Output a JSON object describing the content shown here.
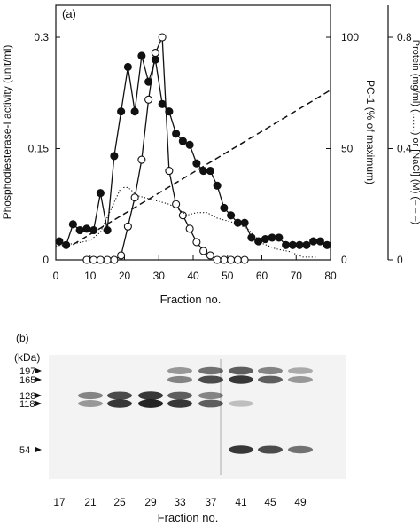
{
  "panel_a": {
    "label": "(a)",
    "xlabel": "Fraction no.",
    "y1label": "Phosphodiesterase-I activity (unit/ml)",
    "y2label": "PC-1 (% of maximum)",
    "y3label": "Protein (mg/ml) (……) or [NaCl] (M) (– – –)"
  },
  "panel_b": {
    "label": "(b)",
    "kda_label": "(kDa)",
    "xlabel": "Fraction no."
  },
  "chart_data": [
    {
      "type": "line",
      "title": "",
      "xlabel": "Fraction no.",
      "ylabel": "Phosphodiesterase-I activity (unit/ml)",
      "y2label": "PC-1 (% of maximum)",
      "y3label": "Protein (mg/ml) (……) or [NaCl] (M) (– – –)",
      "xlim": [
        0,
        80
      ],
      "ylim": [
        0,
        0.3
      ],
      "y2lim": [
        0,
        100
      ],
      "y3lim": [
        0,
        0.8
      ],
      "x_ticks": [
        0,
        10,
        20,
        30,
        40,
        50,
        60,
        70,
        80
      ],
      "y_ticks": [
        {
          "v": 0,
          "label": "0"
        },
        {
          "v": 0.15,
          "label": "0.15"
        },
        {
          "v": 0.3,
          "label": "0.3"
        }
      ],
      "y2_ticks": [
        {
          "v": 0,
          "label": "0"
        },
        {
          "v": 50,
          "label": "50"
        },
        {
          "v": 100,
          "label": "100"
        }
      ],
      "y3_ticks": [
        {
          "v": 0,
          "label": "0"
        },
        {
          "v": 0.4,
          "label": "0.4"
        },
        {
          "v": 0.8,
          "label": "0.8"
        }
      ],
      "grid": false,
      "series": [
        {
          "marker": "filled-circle",
          "axis": "y",
          "x": [
            1,
            3,
            5,
            7,
            9,
            11,
            13,
            15,
            17,
            19,
            21,
            23,
            25,
            27,
            29,
            31,
            33,
            35,
            37,
            39,
            41,
            43,
            45,
            47,
            49,
            51,
            53,
            55,
            57,
            59,
            61,
            63,
            65,
            67,
            69,
            71,
            73,
            75,
            77,
            79
          ],
          "y": [
            0.025,
            0.02,
            0.048,
            0.04,
            0.042,
            0.04,
            0.09,
            0.04,
            0.14,
            0.2,
            0.26,
            0.2,
            0.275,
            0.24,
            0.27,
            0.21,
            0.2,
            0.17,
            0.16,
            0.155,
            0.13,
            0.12,
            0.12,
            0.1,
            0.07,
            0.06,
            0.05,
            0.05,
            0.03,
            0.025,
            0.028,
            0.03,
            0.03,
            0.02,
            0.02,
            0.02,
            0.02,
            0.025,
            0.025,
            0.02
          ]
        },
        {
          "marker": "open-circle",
          "axis": "y2",
          "x": [
            9,
            11,
            13,
            15,
            17,
            19,
            21,
            23,
            25,
            27,
            29,
            31,
            33,
            35,
            37,
            39,
            41,
            43,
            45,
            47,
            49,
            51,
            53,
            55
          ],
          "y": [
            0,
            0,
            0,
            0,
            0,
            2,
            15,
            28,
            45,
            72,
            93,
            100,
            40,
            25,
            20,
            14,
            8,
            4,
            2,
            0,
            0,
            0,
            0,
            0
          ]
        },
        {
          "style": "dotted",
          "axis": "y3",
          "x": [
            0,
            6,
            10,
            13,
            16,
            19,
            21,
            24,
            27,
            30,
            33,
            36,
            38,
            41,
            44,
            47,
            50,
            53,
            56,
            60,
            64,
            68,
            72,
            76
          ],
          "y": [
            0.05,
            0.06,
            0.07,
            0.1,
            0.18,
            0.26,
            0.26,
            0.23,
            0.22,
            0.21,
            0.2,
            0.18,
            0.16,
            0.17,
            0.17,
            0.15,
            0.14,
            0.13,
            0.11,
            0.06,
            0.04,
            0.03,
            0.01,
            0.01
          ]
        },
        {
          "style": "dashed",
          "axis": "y3",
          "x": [
            5,
            80
          ],
          "y": [
            0.055,
            0.61
          ]
        }
      ]
    },
    {
      "type": "blot",
      "xlabel": "Fraction no.",
      "lanes": [
        "17",
        "21",
        "25",
        "29",
        "33",
        "37",
        "41",
        "45",
        "49"
      ],
      "markers_kda": [
        "197",
        "165",
        "128",
        "118",
        "54"
      ],
      "bands_note_relative_intensity_per_lane": {
        "197": [
          0,
          0,
          0,
          0,
          0.3,
          0.5,
          0.6,
          0.4,
          0.2
        ],
        "165": [
          0,
          0,
          0,
          0,
          0.4,
          0.7,
          0.8,
          0.6,
          0.3
        ],
        "128": [
          0,
          0.4,
          0.7,
          0.8,
          0.6,
          0.4,
          0,
          0,
          0
        ],
        "118": [
          0,
          0.3,
          0.8,
          0.9,
          0.8,
          0.6,
          0.1,
          0,
          0
        ],
        "54": [
          0,
          0,
          0,
          0,
          0,
          0,
          0.8,
          0.7,
          0.5
        ]
      }
    }
  ]
}
